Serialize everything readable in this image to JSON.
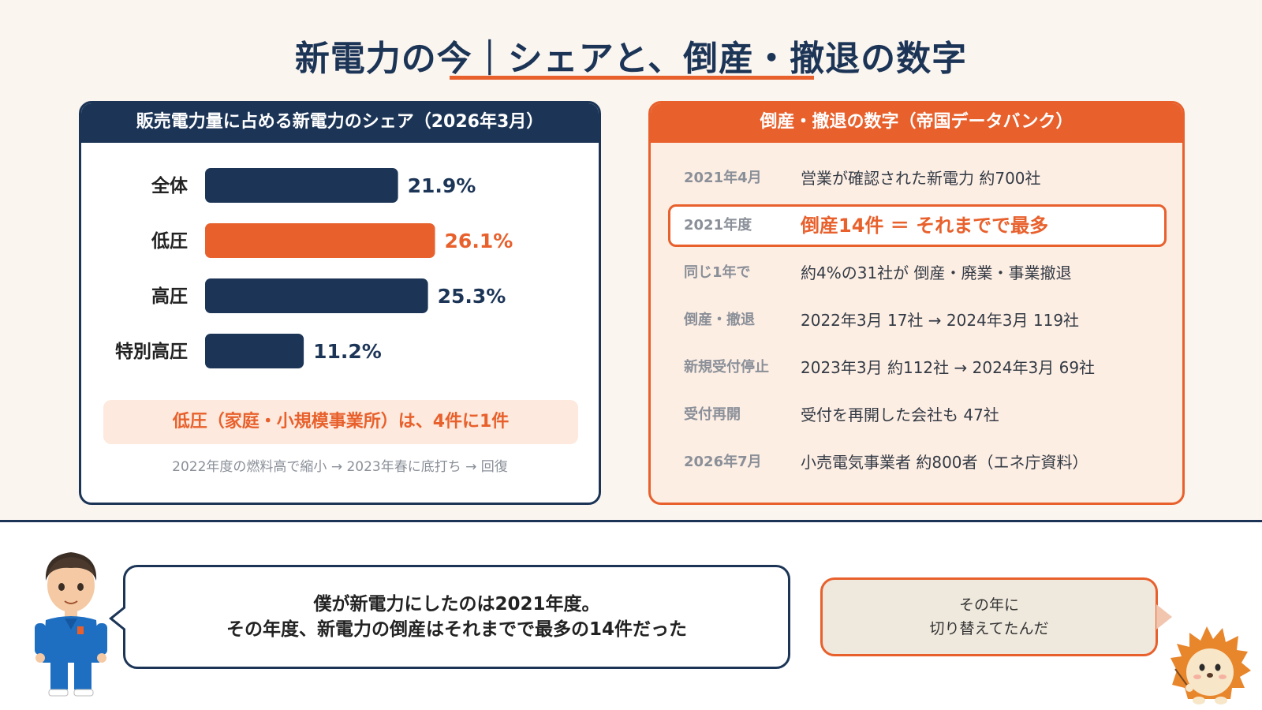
{
  "title": "新電力の今｜シェアと、倒産・撤退の数字",
  "colors": {
    "navy": "#1c3557",
    "orange": "#e8602c",
    "pale_orange": "#fde9dd",
    "cream": "#fbf5ef"
  },
  "share_card": {
    "header": "販売電力量に占める新電力のシェア（2026年3月）",
    "note": "低圧（家庭・小規模事業所）は、4件に1件",
    "sub_note": "2022年度の燃料高で縮小 → 2023年春に底打ち → 回復"
  },
  "chart_data": {
    "type": "bar",
    "orientation": "horizontal",
    "title": "販売電力量に占める新電力のシェア（2026年3月）",
    "categories": [
      "全体",
      "低圧",
      "高圧",
      "特別高圧"
    ],
    "values": [
      21.9,
      26.1,
      25.3,
      11.2
    ],
    "value_labels": [
      "21.9%",
      "26.1%",
      "25.3%",
      "11.2%"
    ],
    "highlight_index": 1,
    "xlim": [
      0,
      30
    ],
    "grid": false,
    "legend": "none"
  },
  "bankrupt_card": {
    "header": "倒産・撤退の数字（帝国データバンク）",
    "rows": [
      {
        "date": "2021年4月",
        "desc": "営業が確認された新電力 約700社"
      },
      {
        "date": "2021年度",
        "desc": "倒産14件 ＝ それまでで最多"
      },
      {
        "date": "同じ1年で",
        "desc": "約4%の31社が 倒産・廃業・事業撤退"
      },
      {
        "date": "倒産・撤退",
        "desc": "2022年3月 17社 → 2024年3月 119社"
      },
      {
        "date": "新規受付停止",
        "desc": "2023年3月 約112社 → 2024年3月 69社"
      },
      {
        "date": "受付再開",
        "desc": "受付を再開した会社も 47社"
      },
      {
        "date": "2026年7月",
        "desc": "小売電気事業者 約800者（エネ庁資料）"
      }
    ]
  },
  "speech_left": {
    "line1": "僕が新電力にしたのは2021年度。",
    "line2": "その年度、新電力の倒産はそれまでで最多の14件だった"
  },
  "speech_right": {
    "line1": "その年に",
    "line2": "切り替えてたんだ"
  }
}
